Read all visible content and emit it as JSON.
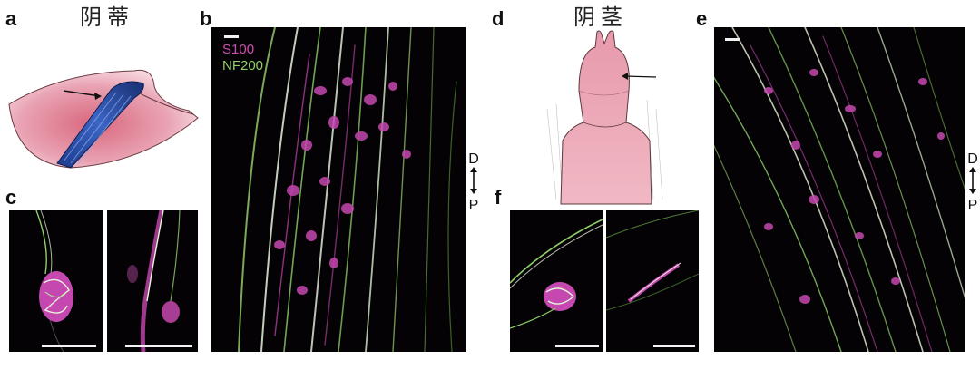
{
  "panels": {
    "a": {
      "letter": "a",
      "title": "阴蒂"
    },
    "b": {
      "letter": "b"
    },
    "c": {
      "letter": "c"
    },
    "d": {
      "letter": "d",
      "title": "阴茎"
    },
    "e": {
      "letter": "e"
    },
    "f": {
      "letter": "f"
    }
  },
  "legend": {
    "s100": "S100",
    "nf200": "NF200"
  },
  "orientation": {
    "dorsal": "D",
    "proximal": "P"
  },
  "colors": {
    "s100_magenta": "#c548b0",
    "nf200_green": "#8fd06a",
    "tissue_pink": "#e9a3b3",
    "nerve_blue": "#2a4fa8",
    "background_black": "#050205"
  }
}
